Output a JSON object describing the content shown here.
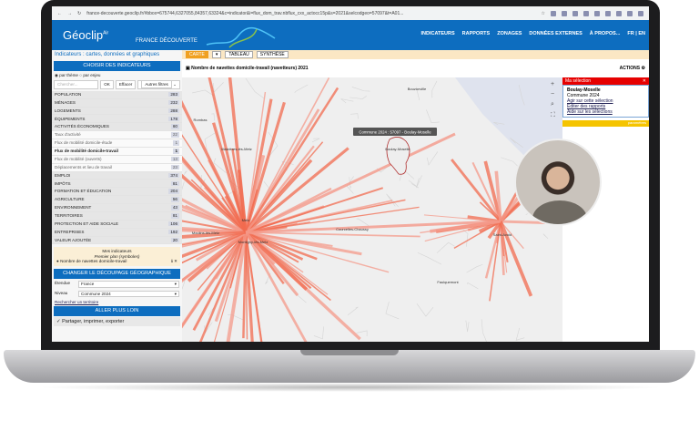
{
  "browser": {
    "url": "france-decouverte.geoclip.fr/#bbox=675744,6327055,84357,63324&c=indicator&i=flux_dom_trav.nbflux_cxx_actocc15p&s=2021&selcodgeo=57097&t=A01..."
  },
  "header": {
    "logo": "Géoclip",
    "logo_sup": "Air",
    "subtitle": "FRANCE DÉCOUVERTE",
    "nav": [
      "INDICATEURS",
      "RAPPORTS",
      "ZONAGES",
      "DONNÉES EXTERNES",
      "À PROPOS...",
      "FR | EN"
    ]
  },
  "left": {
    "title": "Indicateurs : cartes, données et graphiques",
    "choose": "CHOISIR DES INDICATEURS",
    "radio1": "par thème",
    "radio2": "par enjeu",
    "search_placeholder": "Chercher...",
    "ok": "OK",
    "clear": "Effacer",
    "filters": "Autres filtres",
    "themes": [
      {
        "label": "POPULATION",
        "n": "283"
      },
      {
        "label": "MÉNAGES",
        "n": "232"
      },
      {
        "label": "LOGEMENTS",
        "n": "288"
      },
      {
        "label": "ÉQUIPEMENTS",
        "n": "178"
      },
      {
        "label": "ACTIVITÉS ÉCONOMIQUES",
        "n": "60"
      },
      {
        "label": "Taux d'activité",
        "n": "22",
        "sub": true
      },
      {
        "label": "Flux de mobilité domicile-étude",
        "n": "1",
        "sub": true
      },
      {
        "label": "Flux de mobilité domicile-travail",
        "n": "1",
        "sub": true,
        "bold": true
      },
      {
        "label": "Flux de mobilité (ouverts)",
        "n": "13",
        "sub": true
      },
      {
        "label": "Déplacements et lieu de travail",
        "n": "23",
        "sub": true
      },
      {
        "label": "EMPLOI",
        "n": "374"
      },
      {
        "label": "IMPÔTS",
        "n": "81"
      },
      {
        "label": "FORMATION ET ÉDUCATION",
        "n": "204"
      },
      {
        "label": "AGRICULTURE",
        "n": "56"
      },
      {
        "label": "ENVIRONNEMENT",
        "n": "43"
      },
      {
        "label": "TERRITOIRES",
        "n": "81"
      },
      {
        "label": "PROTECTION ET AIDE SOCIALE",
        "n": "106"
      },
      {
        "label": "ENTREPRISES",
        "n": "192"
      },
      {
        "label": "VALEUR AJOUTÉE",
        "n": "20"
      }
    ],
    "my_title": "Mes indicateurs",
    "my_sub": "Premier plan (symboles)",
    "my_item": "Nombre de navettes domicile-travail",
    "change": "CHANGER LE DÉCOUPAGE GÉOGRAPHIQUE",
    "extent_label": "Étendue",
    "extent": "France",
    "level_label": "Niveau",
    "level": "Commune 2024",
    "find": "Rechercher un territoire",
    "further": "ALLER PLUS LOIN",
    "share": "Partager, imprimer, exporter"
  },
  "main": {
    "tabs": [
      "CARTE",
      "TABLEAU",
      "SYNTHÈSE"
    ],
    "indicator": "Nombre de navettes domicile-travail (navetteurs) 2021",
    "actions": "ACTIONS",
    "tooltip": "Commune 2024 : 57097 - Boulay-Moselle",
    "places": [
      "Boulay-Moselle",
      "Bouzonville",
      "Metz",
      "Montigny-lès-Metz",
      "Moulins-lès-Metz",
      "Maizières-lès-Metz",
      "Rombas",
      "Courcelles-Chaussy",
      "Saint-Avold",
      "Faulquemont",
      "Freyming"
    ],
    "flow_color": "#f26b4f"
  },
  "selection": {
    "title": "Ma sélection",
    "name": "Boulay-Moselle",
    "level": "Commune 2024",
    "links": [
      "Agir sur cette sélection",
      "Éditer des rapports",
      "Aide sur les sélections"
    ],
    "bar": "paramètres"
  }
}
